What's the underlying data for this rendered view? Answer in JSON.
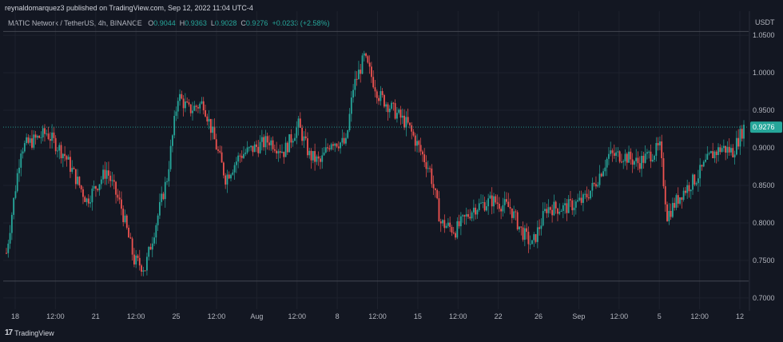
{
  "header": {
    "published": "reynaldomarquez3 published on TradingView.com, Sep 12, 2022 11:04 UTC-4"
  },
  "legend": {
    "symbol": "MATIC Network / TetherUS, 4h, BINANCE",
    "open_label": "O",
    "open": "0.9044",
    "high_label": "H",
    "high": "0.9363",
    "low_label": "L",
    "low": "0.9028",
    "close_label": "C",
    "close": "0.9276",
    "change": "+0.0233 (+2.58%)"
  },
  "footer": {
    "brand": "TradingView",
    "logo": "tradingview-logo-icon"
  },
  "colors": {
    "background": "#131722",
    "up": "#26a69a",
    "down": "#ef5350",
    "grid": "#1e222d",
    "text": "#b2b5be",
    "price_tag": "#26a69a"
  },
  "chart_data": {
    "type": "candlestick",
    "title": "MATIC Network / TetherUS, 4h, BINANCE",
    "currency_label": "USDT",
    "last_price": "0.9276",
    "y_ticks": [
      "1.0500",
      "1.0000",
      "0.9500",
      "0.9000",
      "0.8500",
      "0.8000",
      "0.7500",
      "0.7000"
    ],
    "y_tick_values": [
      1.05,
      1.0,
      0.95,
      0.9,
      0.85,
      0.8,
      0.75,
      0.7
    ],
    "ylim": [
      0.685,
      1.082
    ],
    "x_tick_labels": [
      "18",
      "12:00",
      "21",
      "12:00",
      "25",
      "12:00",
      "Aug",
      "12:00",
      "8",
      "12:00",
      "15",
      "12:00",
      "22",
      "26",
      "Sep",
      "12:00",
      "5",
      "12:00",
      "12"
    ],
    "x_tick_labels_note": "approximate placement",
    "horizontal_lines": [
      1.055,
      0.7225
    ],
    "grid": true,
    "candles": []
  }
}
